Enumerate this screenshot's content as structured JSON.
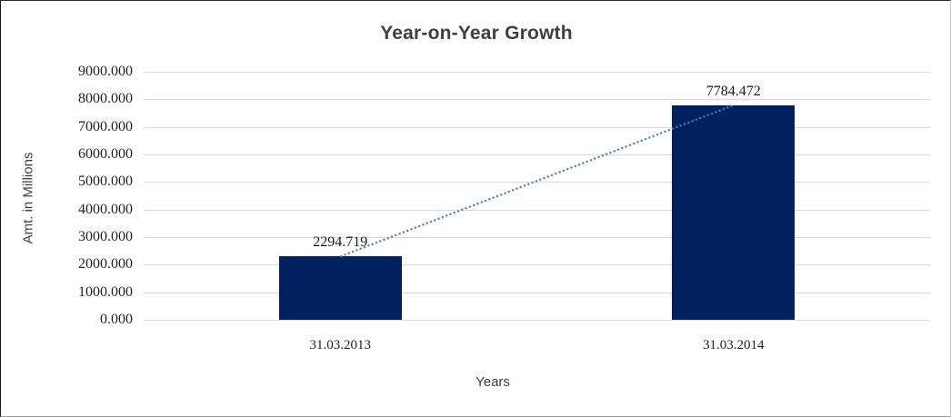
{
  "chart_data": {
    "type": "bar",
    "title": "Year-on-Year Growth",
    "xlabel": "Years",
    "ylabel": "Amt. in Millions",
    "categories": [
      "31.03.2013",
      "31.03.2014"
    ],
    "series": [
      {
        "name": "Amt. in Millions",
        "values": [
          2294.719,
          7784.472
        ]
      }
    ],
    "data_labels": [
      "2294.719",
      "7784.472"
    ],
    "ylim": [
      0,
      9000
    ],
    "ytick_step": 1000,
    "ytick_labels": [
      "0.000",
      "1000.000",
      "2000.000",
      "3000.000",
      "4000.000",
      "5000.000",
      "6000.000",
      "7000.000",
      "8000.000",
      "9000.000"
    ],
    "grid": true,
    "legend": "none",
    "trendline": {
      "type": "linear",
      "style": "dotted",
      "color": "#4a7ebb"
    },
    "colors": {
      "bar_fill": "#01215e",
      "gridline": "#d9d9d9",
      "title_text": "#3f3f3f",
      "tick_text": "#1f1f1f",
      "background": "#ffffff"
    }
  }
}
